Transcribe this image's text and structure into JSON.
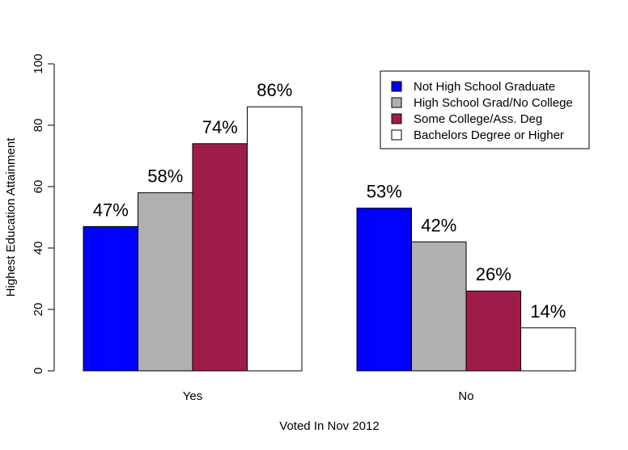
{
  "chart_data": {
    "type": "bar",
    "title": "",
    "xlabel": "Voted In Nov 2012",
    "ylabel": "Highest Education Attainment",
    "ylim": [
      0,
      100
    ],
    "yticks": [
      0,
      20,
      40,
      60,
      80,
      100
    ],
    "grid": false,
    "legend_position": "top-right",
    "categories": [
      "Yes",
      "No"
    ],
    "series": [
      {
        "name": "Not High School Graduate",
        "color": "#0000ff",
        "values": [
          47,
          53
        ],
        "labels": [
          "47%",
          "53%"
        ]
      },
      {
        "name": "High School Grad/No College",
        "color": "#b0b0b0",
        "values": [
          58,
          42
        ],
        "labels": [
          "58%",
          "42%"
        ]
      },
      {
        "name": "Some College/Ass. Deg",
        "color": "#9e1c4a",
        "values": [
          74,
          26
        ],
        "labels": [
          "74%",
          "26%"
        ]
      },
      {
        "name": "Bachelors Degree or Higher",
        "color": "#ffffff",
        "values": [
          86,
          14
        ],
        "labels": [
          "86%",
          "14%"
        ]
      }
    ]
  }
}
